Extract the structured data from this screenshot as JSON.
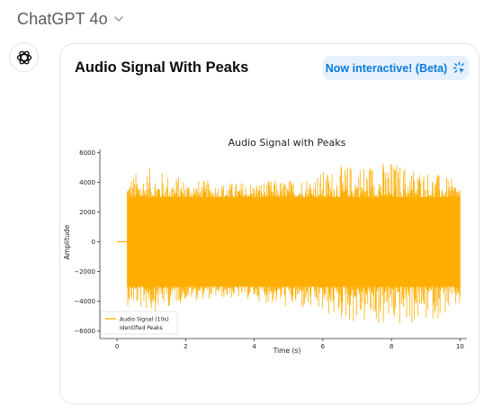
{
  "header": {
    "model_name": "ChatGPT 4o",
    "chevron_icon": "chevron-down-icon"
  },
  "assistant": {
    "avatar_icon": "openai-logo-icon"
  },
  "card": {
    "title": "Audio Signal With Peaks",
    "badge_label": "Now interactive! (Beta)",
    "badge_icon": "sparkle-cursor-icon",
    "accent_color": "#0a7bdc",
    "badge_bg": "#e7f1fd"
  },
  "chart_data": {
    "type": "line",
    "title": "Audio Signal with Peaks",
    "xlabel": "Time (s)",
    "ylabel": "Amplitude",
    "xlim": [
      -0.5,
      10.2
    ],
    "ylim": [
      -6500,
      6200
    ],
    "x_ticks": [
      0,
      2,
      4,
      6,
      8,
      10
    ],
    "y_ticks": [
      6000,
      4000,
      2000,
      0,
      -2000,
      -4000,
      -6000
    ],
    "x_tick_labels": [
      "0",
      "2",
      "4",
      "6",
      "8",
      "10"
    ],
    "y_tick_labels": [
      "6000",
      "4000",
      "2000",
      "0",
      "−2000",
      "−4000",
      "−6000"
    ],
    "legend_position": "bottom-left",
    "grid": false,
    "series": [
      {
        "name": "Audio Signal (10s)",
        "color": "#ffae00",
        "silent_from": 0.0,
        "silent_to": 0.3,
        "active_from": 0.3,
        "active_to": 10.0,
        "typical_range": [
          -3000,
          3000
        ],
        "envelope_x": [
          0.3,
          1.0,
          2.0,
          3.0,
          4.0,
          5.0,
          6.0,
          7.0,
          8.0,
          9.0,
          10.0
        ],
        "envelope_max": [
          4500,
          5000,
          4300,
          4000,
          4100,
          4200,
          4800,
          5400,
          5500,
          4900,
          4000
        ],
        "envelope_min": [
          -4300,
          -4800,
          -4000,
          -3800,
          -3900,
          -4500,
          -5000,
          -5600,
          -5900,
          -5500,
          -4500
        ]
      },
      {
        "name": "Identified Peaks",
        "color": "#ff4444",
        "values": []
      }
    ]
  }
}
